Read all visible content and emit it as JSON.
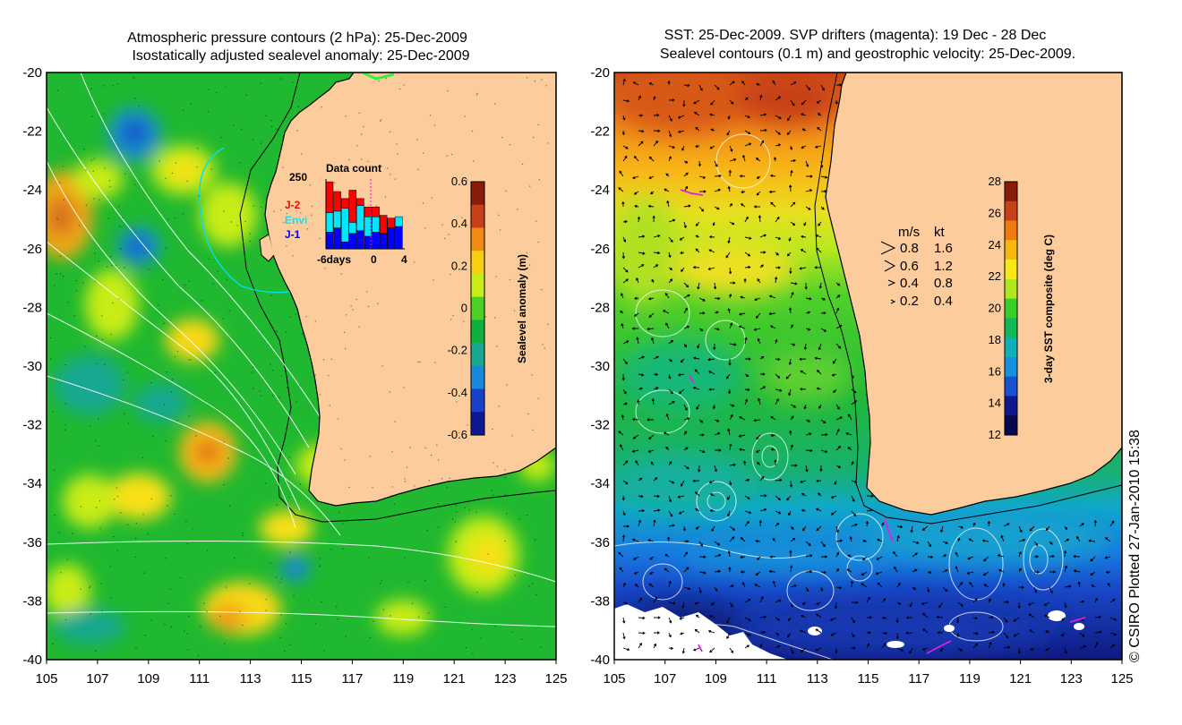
{
  "left_panel": {
    "title_line1": "Atmospheric pressure contours (2 hPa): 25-Dec-2009",
    "title_line2": "Isostatically adjusted sealevel anomaly: 25-Dec-2009",
    "colorbar_label": "Sealevel anomaly (m)",
    "colorbar_ticks": [
      "0.6",
      "0.4",
      "0.2",
      "0",
      "-0.2",
      "-0.4",
      "-0.6"
    ],
    "colorbar_colors": [
      "#8a1a0a",
      "#c8401a",
      "#f08a10",
      "#f8cf10",
      "#c8ec18",
      "#4cd024",
      "#10b040",
      "#18a890",
      "#1888d8",
      "#1840c8",
      "#0c1890"
    ],
    "inset": {
      "title": "Data count",
      "ymax_label": "250",
      "x_labels": [
        "-6days",
        "0",
        "4"
      ],
      "missions": [
        {
          "name": "J-2",
          "color": "#ff0000"
        },
        {
          "name": "Envi",
          "color": "#00e8ff"
        },
        {
          "name": "J-1",
          "color": "#0000ff"
        }
      ],
      "bars": [
        {
          "j1": 60,
          "envi": 70,
          "j2": 110
        },
        {
          "j1": 75,
          "envi": 60,
          "j2": 70
        },
        {
          "j1": 25,
          "envi": 120,
          "j2": 35
        },
        {
          "j1": 55,
          "envi": 40,
          "j2": 115
        },
        {
          "j1": 65,
          "envi": 90,
          "j2": 25
        },
        {
          "j1": 45,
          "envi": 70,
          "j2": 35
        },
        {
          "j1": 60,
          "envi": 55,
          "j2": 35
        },
        {
          "j1": 55,
          "envi": 0,
          "j2": 65
        },
        {
          "j1": 75,
          "envi": 0,
          "j2": 35
        },
        {
          "j1": 80,
          "envi": 35,
          "j2": 0
        }
      ],
      "ymax": 250
    }
  },
  "right_panel": {
    "title_line1": "SST: 25-Dec-2009. SVP drifters (magenta): 19 Dec - 28 Dec",
    "title_line2": "Sealevel contours (0.1 m) and geostrophic velocity: 25-Dec-2009.",
    "colorbar_label": "3-day SST composite (deg C)",
    "colorbar_ticks": [
      "28",
      "26",
      "24",
      "22",
      "20",
      "18",
      "16",
      "14",
      "12"
    ],
    "colorbar_colors": [
      "#8a1a0a",
      "#c84018",
      "#f07c10",
      "#f8b810",
      "#f8e818",
      "#b0e820",
      "#38d028",
      "#10b858",
      "#10b0b8",
      "#1890e0",
      "#1850d0",
      "#101890",
      "#080850"
    ],
    "velocity_legend": {
      "header_ms": "m/s",
      "header_kt": "kt",
      "rows": [
        {
          "ms": "0.8",
          "kt": "1.6"
        },
        {
          "ms": "0.6",
          "kt": "1.2"
        },
        {
          "ms": "0.4",
          "kt": "0.8"
        },
        {
          "ms": "0.2",
          "kt": "0.4"
        }
      ]
    }
  },
  "axes": {
    "lon_labels": [
      "105",
      "107",
      "109",
      "111",
      "113",
      "115",
      "117",
      "119",
      "121",
      "123",
      "125"
    ],
    "lat_labels": [
      "-20",
      "-22",
      "-24",
      "-26",
      "-28",
      "-30",
      "-32",
      "-34",
      "-36",
      "-38",
      "-40"
    ]
  },
  "credit": "© CSIRO Plotted 27-Jan-2010 15:38",
  "colors": {
    "land": "#fccc9c",
    "ocean_green": "#20b830",
    "coast": "#000000",
    "isobath": "#000000",
    "contour": "#ffffff",
    "cyan_track": "#00d8e8",
    "drifter": "#e020e0"
  }
}
